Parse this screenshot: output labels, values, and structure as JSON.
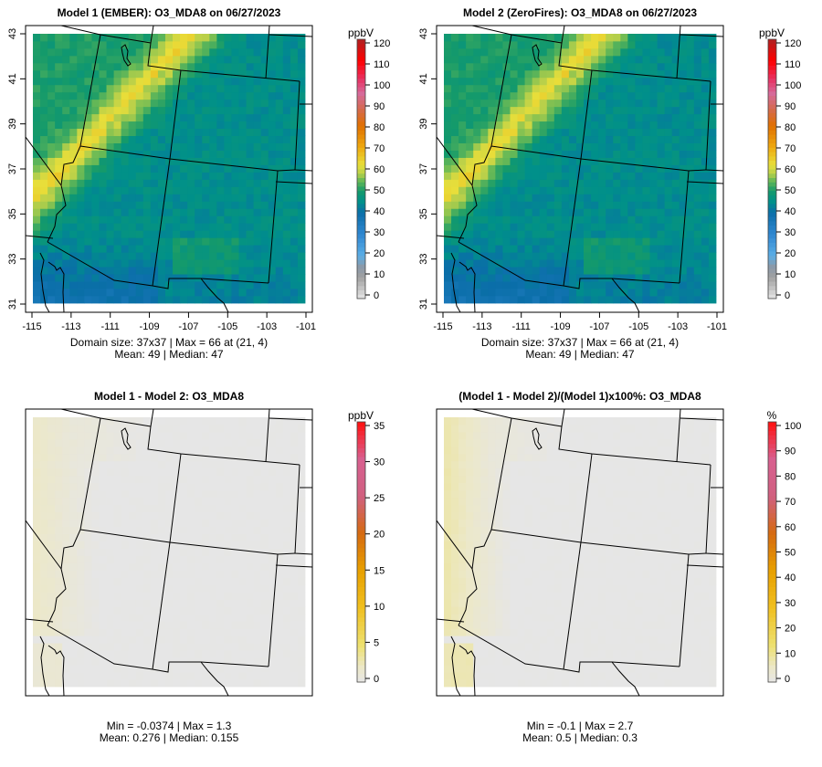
{
  "chart_data": [
    {
      "type": "heatmap",
      "title": "Model 1 (EMBER): O3_MDA8 on 06/27/2023",
      "units": "ppbV",
      "grid": "37x37",
      "xlim": [
        -115,
        -101
      ],
      "ylim": [
        31,
        43
      ],
      "x_ticks": [
        "-115",
        "-113",
        "-111",
        "-109",
        "-107",
        "-105",
        "-103",
        "-101"
      ],
      "y_ticks": [
        "31",
        "33",
        "35",
        "37",
        "39",
        "41",
        "43"
      ],
      "colorbar_range": [
        0,
        120
      ],
      "colorbar_ticks": [
        "0",
        "10",
        "20",
        "30",
        "40",
        "50",
        "60",
        "70",
        "80",
        "90",
        "100",
        "110",
        "120"
      ],
      "stats_line1": "Domain size: 37x37 | Max = 66 at (21, 4)",
      "stats_line2": "Mean: 49 |  Median: 47",
      "max": 66,
      "mean": 49,
      "median": 47
    },
    {
      "type": "heatmap",
      "title": "Model 2 (ZeroFires): O3_MDA8 on 06/27/2023",
      "units": "ppbV",
      "grid": "37x37",
      "xlim": [
        -115,
        -101
      ],
      "ylim": [
        31,
        43
      ],
      "x_ticks": [
        "-115",
        "-113",
        "-111",
        "-109",
        "-107",
        "-105",
        "-103",
        "-101"
      ],
      "y_ticks": [
        "31",
        "33",
        "35",
        "37",
        "39",
        "41",
        "43"
      ],
      "colorbar_range": [
        0,
        120
      ],
      "colorbar_ticks": [
        "0",
        "10",
        "20",
        "30",
        "40",
        "50",
        "60",
        "70",
        "80",
        "90",
        "100",
        "110",
        "120"
      ],
      "stats_line1": "Domain size: 37x37 | Max = 66 at (21, 4)",
      "stats_line2": "Mean: 49 |  Median: 47",
      "max": 66,
      "mean": 49,
      "median": 47
    },
    {
      "type": "heatmap",
      "title": "Model 1 - Model 2: O3_MDA8",
      "units": "ppbV",
      "colorbar_range": [
        0,
        35
      ],
      "colorbar_ticks": [
        "0",
        "5",
        "10",
        "15",
        "20",
        "25",
        "30",
        "35"
      ],
      "stats_line1": "Min = -0.0374 | Max = 1.3",
      "stats_line2": "Mean: 0.276 |  Median: 0.155",
      "min": -0.0374,
      "max": 1.3,
      "mean": 0.276,
      "median": 0.155
    },
    {
      "type": "heatmap",
      "title": "(Model 1 - Model 2)/(Model 1)x100%: O3_MDA8",
      "units": "%",
      "colorbar_range": [
        0,
        100
      ],
      "colorbar_ticks": [
        "0",
        "10",
        "20",
        "30",
        "40",
        "50",
        "60",
        "70",
        "80",
        "90",
        "100"
      ],
      "stats_line1": "Min = -0.1 | Max = 2.7",
      "stats_line2": "Mean: 0.5 |  Median: 0.3",
      "min": -0.1,
      "max": 2.7,
      "mean": 0.5,
      "median": 0.3
    }
  ]
}
